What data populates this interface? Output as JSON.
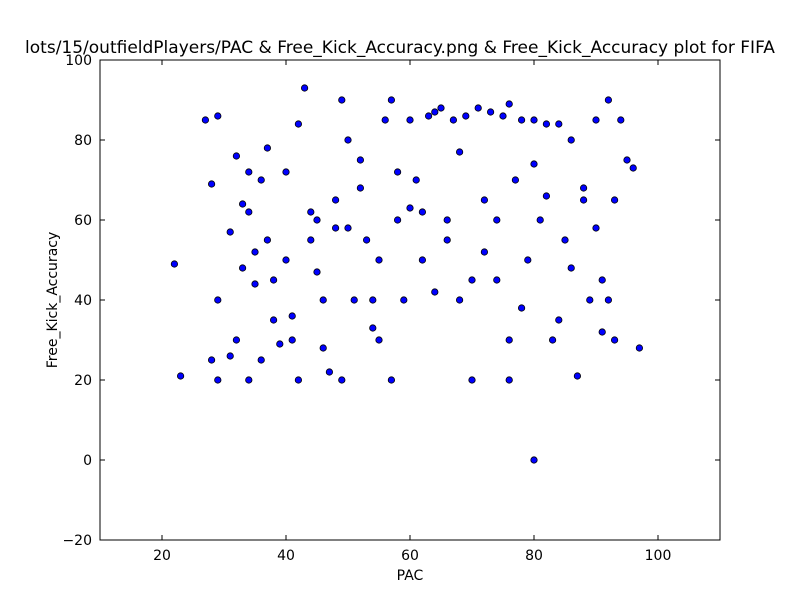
{
  "chart_data": {
    "type": "scatter",
    "title": "lots/15/outfieldPlayers/PAC & Free_Kick_Accuracy.png & Free_Kick_Accuracy plot for FIFA",
    "xlabel": "PAC",
    "ylabel": "Free_Kick_Accuracy",
    "xlim": [
      10,
      110
    ],
    "ylim": [
      -20,
      100
    ],
    "xticks": [
      20,
      40,
      60,
      80,
      100
    ],
    "yticks": [
      -20,
      0,
      20,
      40,
      60,
      80,
      100
    ],
    "grid": false,
    "legend": "none",
    "marker_color": "#0000ff",
    "marker_edge_color": "#000000",
    "series": [
      {
        "x": [
          22,
          23,
          27,
          28,
          28,
          29,
          29,
          29,
          31,
          32,
          32,
          33,
          34,
          34,
          35,
          36,
          36,
          37,
          38,
          39,
          40,
          41,
          42,
          42,
          43,
          44,
          45,
          46,
          47,
          48,
          49,
          49,
          50,
          51,
          52,
          53,
          54,
          55,
          56,
          57,
          57,
          58,
          59,
          60,
          61,
          62,
          63,
          64,
          65,
          66,
          67,
          68,
          69,
          70,
          71,
          72,
          73,
          74,
          75,
          76,
          76,
          77,
          78,
          79,
          80,
          80,
          81,
          82,
          83,
          84,
          85,
          86,
          87,
          88,
          89,
          90,
          91,
          92,
          93,
          93,
          94,
          95,
          96,
          97,
          33,
          35,
          38,
          40,
          44,
          46,
          48,
          52,
          55,
          58,
          62,
          66,
          70,
          74,
          78,
          82,
          86,
          90,
          92,
          31,
          34,
          37,
          41,
          45,
          50,
          54,
          60,
          64,
          68,
          72,
          76,
          80,
          84,
          88,
          91
        ],
        "y": [
          49,
          21,
          85,
          69,
          25,
          86,
          40,
          20,
          57,
          76,
          30,
          64,
          62,
          20,
          52,
          70,
          25,
          78,
          45,
          29,
          72,
          30,
          84,
          20,
          93,
          55,
          60,
          40,
          22,
          65,
          90,
          20,
          80,
          40,
          75,
          55,
          40,
          30,
          85,
          90,
          20,
          60,
          40,
          85,
          70,
          50,
          86,
          87,
          88,
          60,
          85,
          40,
          86,
          20,
          88,
          65,
          87,
          45,
          86,
          89,
          20,
          70,
          85,
          50,
          0,
          85,
          60,
          84,
          30,
          84,
          55,
          80,
          21,
          65,
          40,
          85,
          45,
          90,
          65,
          30,
          85,
          75,
          73,
          28,
          48,
          44,
          35,
          50,
          62,
          28,
          58,
          68,
          50,
          72,
          62,
          55,
          45,
          60,
          38,
          66,
          48,
          58,
          40,
          26,
          72,
          55,
          36,
          47,
          58,
          33,
          63,
          42,
          77,
          52,
          30,
          74,
          35,
          68,
          32
        ]
      }
    ]
  }
}
